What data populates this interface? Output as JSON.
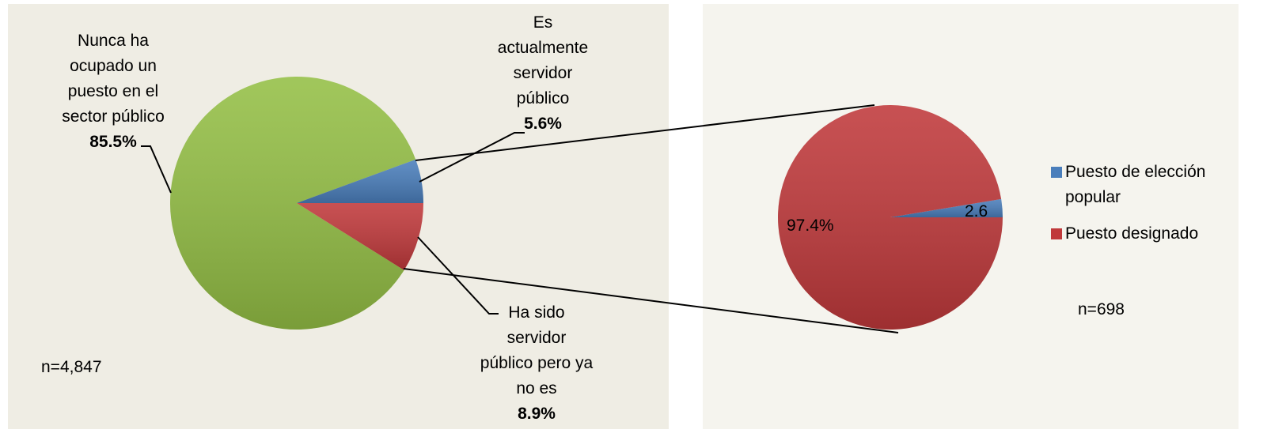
{
  "chart_data": [
    {
      "type": "pie",
      "categories": [
        "Nunca ha ocupado un puesto en el sector público",
        "Es actualmente servidor público",
        "Ha sido servidor público pero ya no es"
      ],
      "values": [
        85.5,
        5.6,
        8.9
      ],
      "value_labels": [
        "85.5%",
        "5.6%",
        "8.9%"
      ],
      "colors": [
        "#94bf45",
        "#4a7ebb",
        "#c0393b"
      ],
      "annotations": [
        "n=4,847"
      ]
    },
    {
      "type": "pie",
      "categories": [
        "Puesto de elección popular",
        "Puesto designado"
      ],
      "values": [
        2.6,
        97.4
      ],
      "value_labels": [
        "2.6",
        "97.4%"
      ],
      "colors": [
        "#4a7ebb",
        "#c0393b"
      ],
      "legend": "right",
      "annotations": [
        "n=698"
      ]
    }
  ]
}
